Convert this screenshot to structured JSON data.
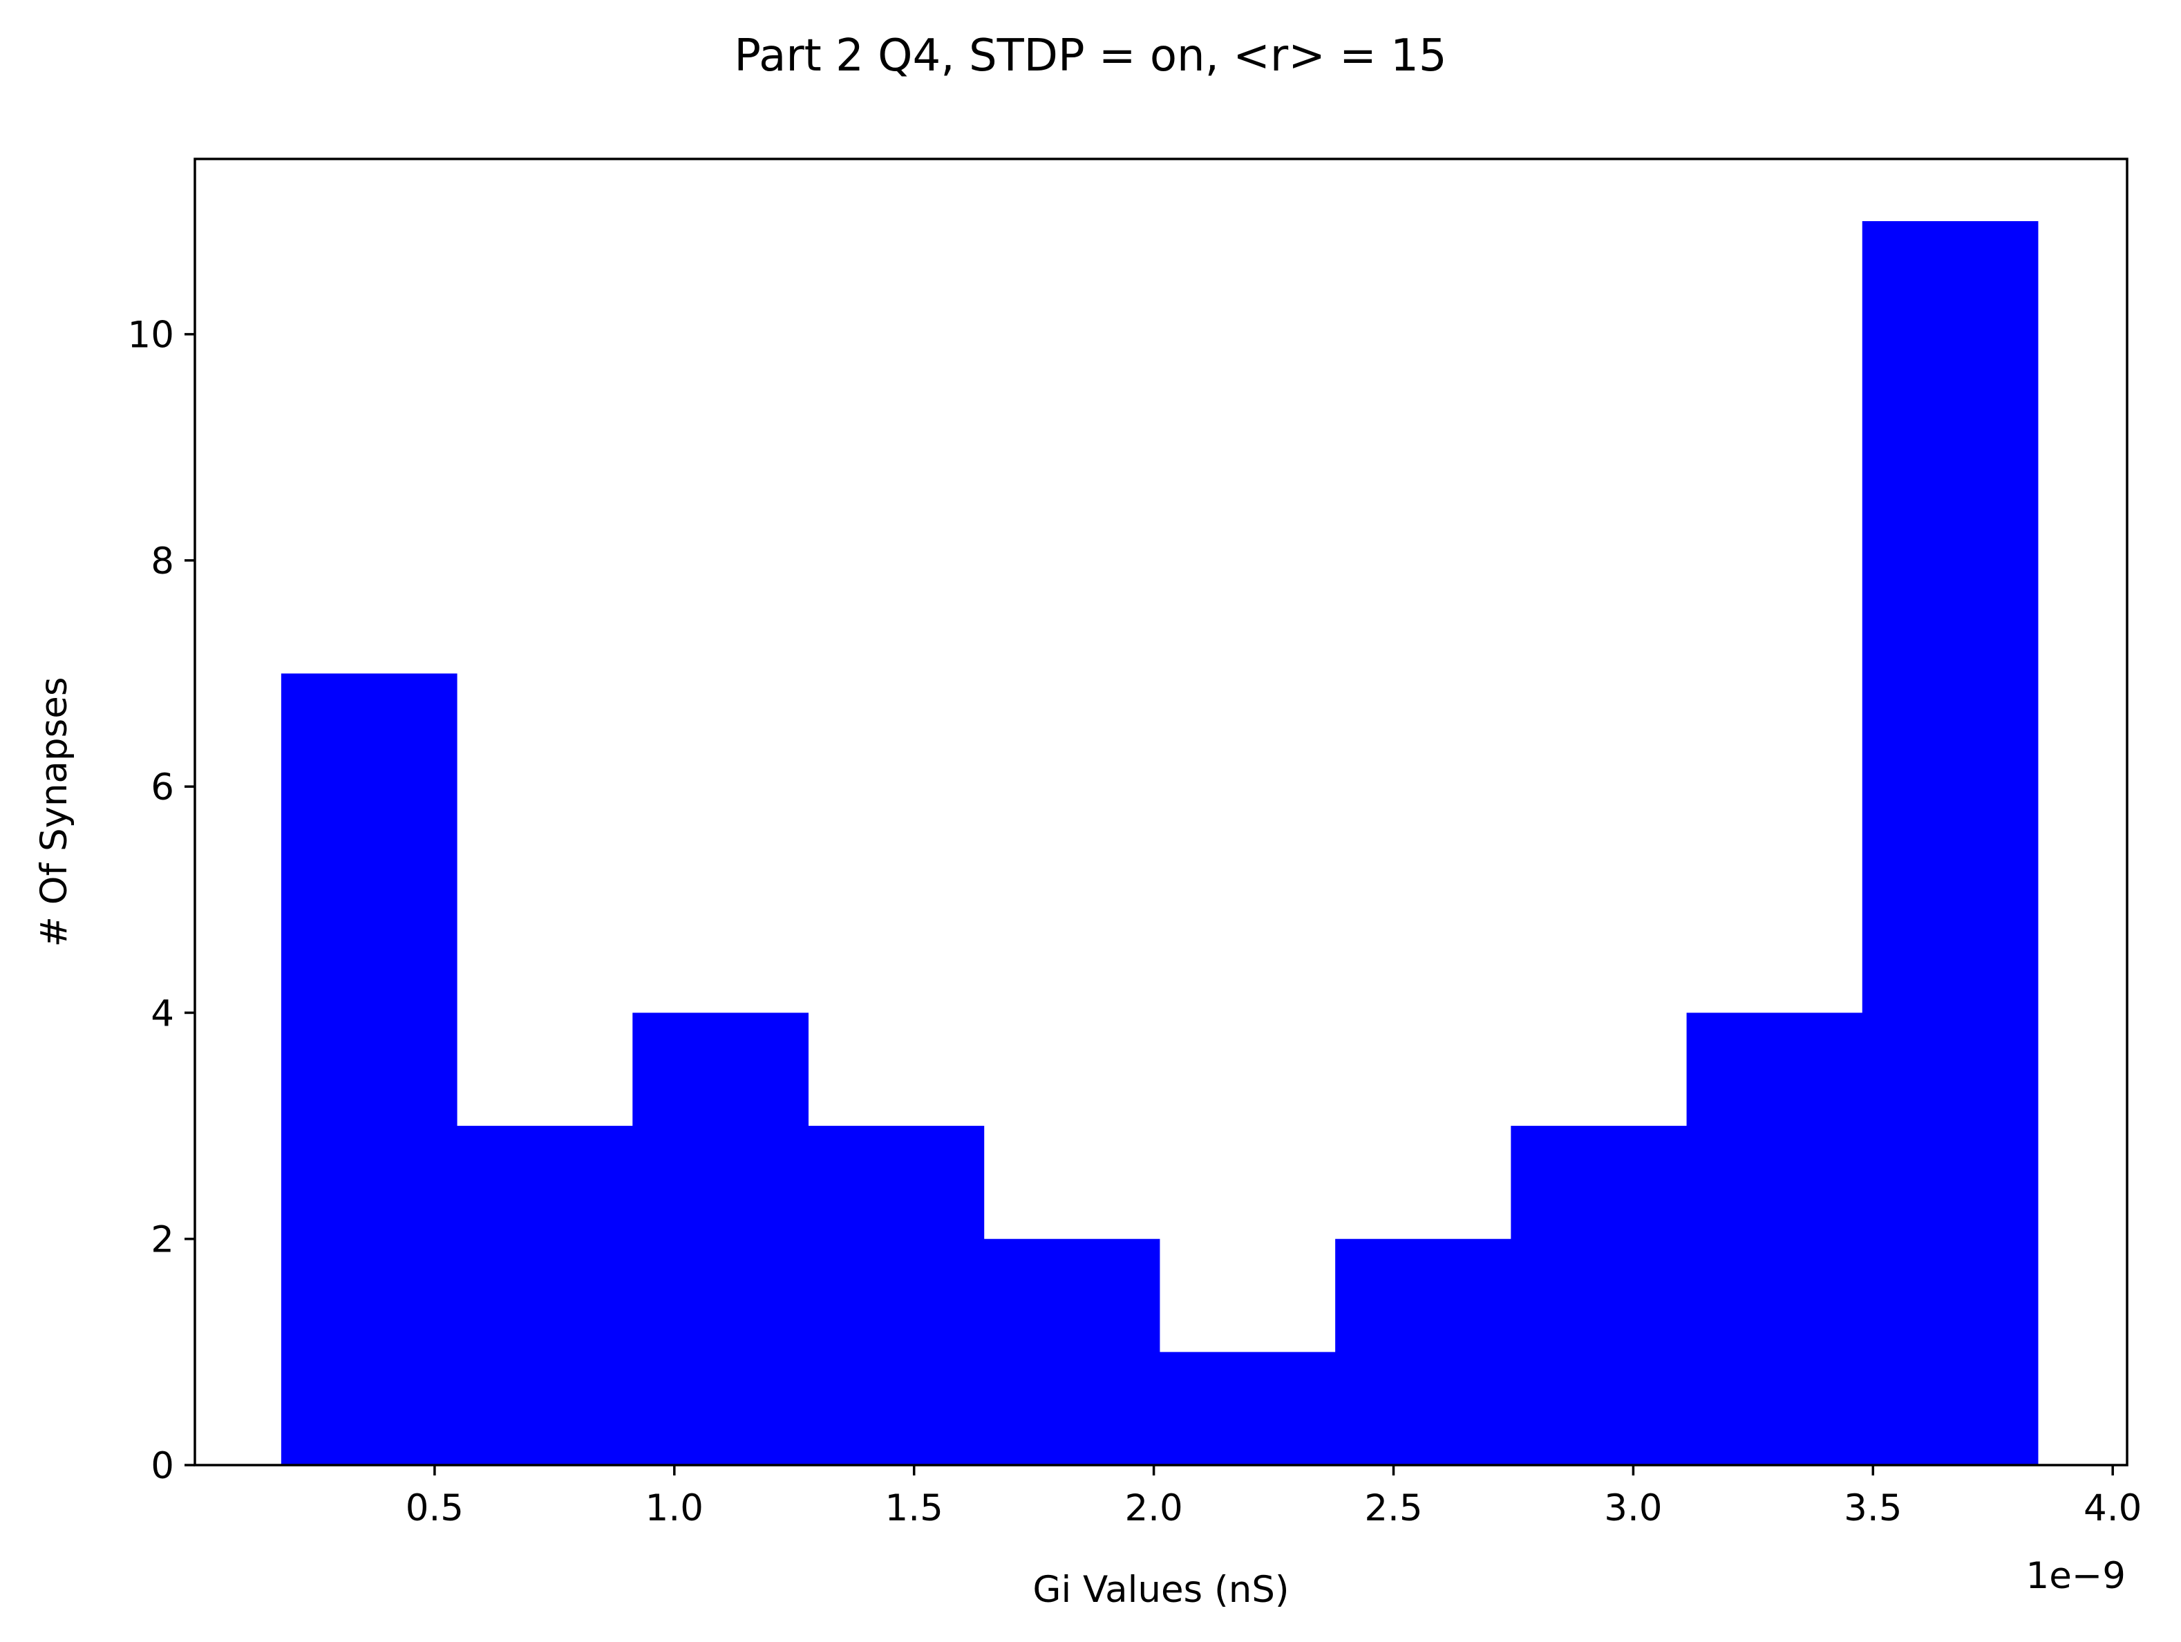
{
  "chart_data": {
    "type": "bar",
    "title": "Part 2 Q4, STDP = on, <r> = 15",
    "xlabel": "Gi Values (nS)",
    "ylabel": "# Of Synapses",
    "offset_label": "1e−9",
    "bin_edges": [
      0.18,
      0.5464,
      0.9128,
      1.2792,
      1.6456,
      2.012,
      2.3784,
      2.7448,
      3.1112,
      3.4776,
      3.844
    ],
    "values": [
      7,
      3,
      4,
      3,
      2,
      1,
      2,
      3,
      4,
      11
    ],
    "bar_color": "#0000ff",
    "xlim": [
      0.0,
      4.03
    ],
    "ylim": [
      0,
      11.55
    ],
    "x_ticks": [
      {
        "value": 0.5,
        "label": "0.5"
      },
      {
        "value": 1.0,
        "label": "1.0"
      },
      {
        "value": 1.5,
        "label": "1.5"
      },
      {
        "value": 2.0,
        "label": "2.0"
      },
      {
        "value": 2.5,
        "label": "2.5"
      },
      {
        "value": 3.0,
        "label": "3.0"
      },
      {
        "value": 3.5,
        "label": "3.5"
      },
      {
        "value": 4.0,
        "label": "4.0"
      }
    ],
    "y_ticks": [
      {
        "value": 0,
        "label": "0"
      },
      {
        "value": 2,
        "label": "2"
      },
      {
        "value": 4,
        "label": "4"
      },
      {
        "value": 6,
        "label": "6"
      },
      {
        "value": 8,
        "label": "8"
      },
      {
        "value": 10,
        "label": "10"
      }
    ],
    "grid": false,
    "legend": "none"
  }
}
